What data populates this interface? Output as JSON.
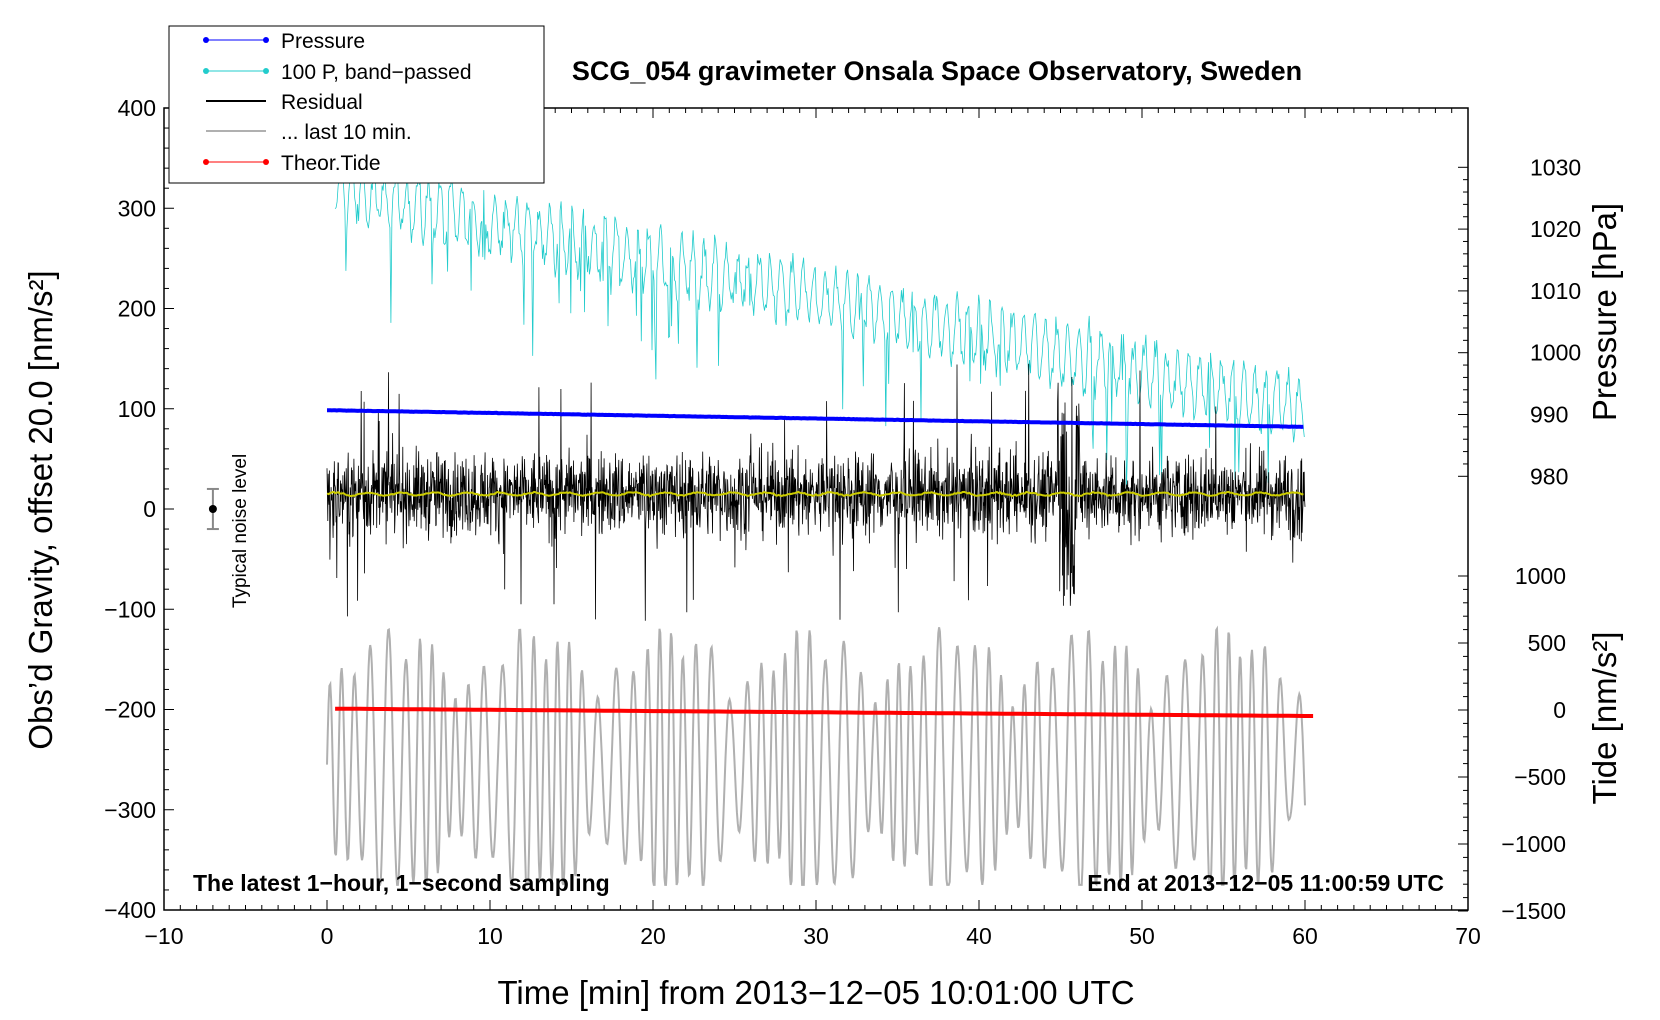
{
  "chart_data": {
    "type": "line",
    "title": "SCG_054 gravimeter Onsala Space Observatory, Sweden",
    "xlabel": "Time [min] from 2013−12−05 10:01:00 UTC",
    "ylabel_left": "Obs’d Gravity, offset 20.0 [nm/s²]",
    "ylabel_right_pressure": "Pressure [hPa]",
    "ylabel_right_tide": "Tide [nm/s²]",
    "xlim": [
      -10,
      70
    ],
    "ylim": [
      -400,
      400
    ],
    "x_ticks": [
      "−10",
      "0",
      "10",
      "20",
      "30",
      "40",
      "50",
      "60",
      "70"
    ],
    "y_ticks_left": [
      "400",
      "300",
      "200",
      "100",
      "0",
      "−100",
      "−200",
      "−300",
      "−400"
    ],
    "pressure_axis": {
      "ticks": [
        "1030",
        "1020",
        "1010",
        "1000",
        "990",
        "980"
      ]
    },
    "tide_axis": {
      "ticks": [
        "1000",
        "500",
        "0",
        "−500",
        "−1000",
        "−1500"
      ]
    },
    "footer_left": "The latest 1−hour, 1−second sampling",
    "footer_right": "End at 2013−12−05 11:00:59 UTC",
    "noise_level": {
      "label": "Typical noise level",
      "x": -7,
      "center": 0,
      "half_range": 20
    },
    "legend_position": "top-left",
    "legend": [
      {
        "name": "Pressure",
        "color": "#0000ff",
        "marker": true
      },
      {
        "name": "100 P, band−passed",
        "color": "#22cccc",
        "marker": true
      },
      {
        "name": "Residual",
        "color": "#000000",
        "marker": false
      },
      {
        "name": "... last 10 min.",
        "color": "#b0b0b0",
        "marker": false
      },
      {
        "name": "Theor.Tide",
        "color": "#ff0000",
        "marker": true
      }
    ],
    "series": [
      {
        "name": "Pressure",
        "color": "#0000ff",
        "axis": "pressure",
        "start_hPa": 990.7,
        "end_hPa": 988.0,
        "x_range": [
          0,
          60
        ]
      },
      {
        "name": "100 P, band−passed",
        "color": "#22cccc",
        "axis": "gravity",
        "start_value": 320,
        "end_value": 100,
        "x_range": [
          0.5,
          60
        ]
      },
      {
        "name": "Residual",
        "color": "#000000",
        "axis": "gravity",
        "center": 15,
        "typical_amplitude": 45,
        "spike_max": 165,
        "spike_min": -145,
        "x_range": [
          0,
          60
        ]
      },
      {
        "name": "Residual smoothed",
        "color": "#cccc00",
        "axis": "gravity",
        "value": 15,
        "x_range": [
          0,
          60
        ]
      },
      {
        "name": "... last 10 min.",
        "color": "#b0b0b0",
        "axis": "gravity",
        "center": -255,
        "amplitude_range": [
          -375,
          -118
        ],
        "x_range": [
          0,
          60
        ]
      },
      {
        "name": "Theor.Tide",
        "color": "#ff0000",
        "axis": "tide",
        "start_value": 10,
        "end_value": -45,
        "x_range": [
          0.5,
          60.5
        ]
      }
    ]
  }
}
